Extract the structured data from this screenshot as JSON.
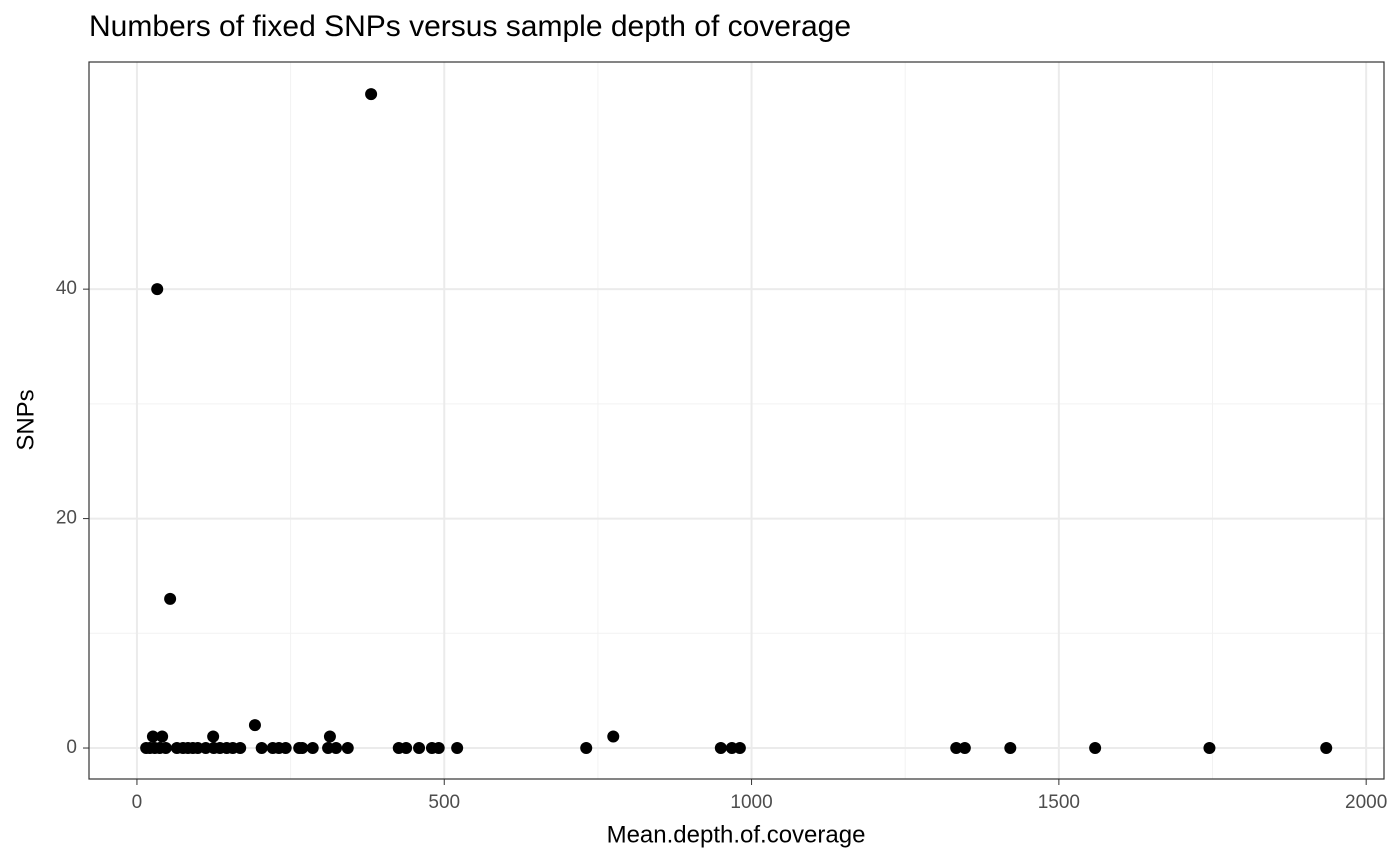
{
  "chart_data": {
    "type": "scatter",
    "title": "Numbers of fixed SNPs versus sample depth of coverage",
    "x_label": "Mean.depth.of.coverage",
    "y_label": "SNPs",
    "xlim": [
      -78,
      2029
    ],
    "ylim": [
      -2.7,
      59.8
    ],
    "xticks": [
      0,
      500,
      1000,
      1500,
      2000
    ],
    "yticks": [
      0,
      20,
      40
    ],
    "grid": true,
    "color": "#000000",
    "series": [
      {
        "name": "SNPs",
        "x": [
          381,
          33,
          54,
          26,
          41,
          124,
          192,
          314,
          775,
          15,
          21,
          29,
          37,
          47,
          65,
          75,
          83,
          91,
          99,
          112,
          125,
          135,
          146,
          156,
          168,
          203,
          221,
          231,
          242,
          264,
          269,
          286,
          311,
          324,
          343,
          426,
          438,
          459,
          480,
          491,
          521,
          731,
          950,
          968,
          981,
          1333,
          1347,
          1421,
          1559,
          1745,
          1935
        ],
        "values": [
          57,
          40,
          13,
          1,
          1,
          1,
          2,
          1,
          1,
          0,
          0,
          0,
          0,
          0,
          0,
          0,
          0,
          0,
          0,
          0,
          0,
          0,
          0,
          0,
          0,
          0,
          0,
          0,
          0,
          0,
          0,
          0,
          0,
          0,
          0,
          0,
          0,
          0,
          0,
          0,
          0,
          0,
          0,
          0,
          0,
          0,
          0,
          0,
          0,
          0,
          0
        ]
      }
    ]
  }
}
